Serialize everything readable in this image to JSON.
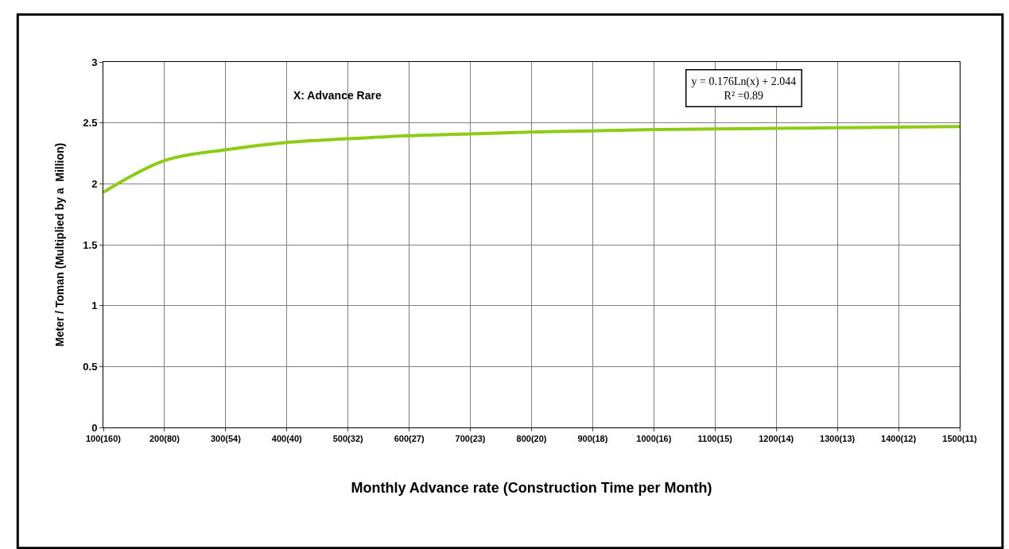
{
  "chart_data": {
    "type": "line",
    "xlabel": "Monthly Advance rate (Construction Time per Month)",
    "ylabel": "Meter / Toman (Multiplied by a  Million)",
    "categories": [
      "100(160)",
      "200(80)",
      "300(54)",
      "400(40)",
      "500(32)",
      "600(27)",
      "700(23)",
      "800(20)",
      "900(18)",
      "1000(16)",
      "1100(15)",
      "1200(14)",
      "1300(13)",
      "1400(12)",
      "1500(11)"
    ],
    "series": [
      {
        "color": "#8ccc14",
        "values": [
          1.93,
          2.19,
          2.28,
          2.34,
          2.37,
          2.395,
          2.41,
          2.425,
          2.435,
          2.445,
          2.45,
          2.455,
          2.46,
          2.465,
          2.47
        ]
      }
    ],
    "ylim": [
      0,
      3
    ],
    "yticks": [
      0,
      0.5,
      1,
      1.5,
      2,
      2.5,
      3
    ],
    "grid": true,
    "marker": "none",
    "line_style": "solid",
    "annotations": [
      "X: Advance Rare",
      "y = 0.176Ln(x) + 2.044",
      "R² =0.89"
    ]
  }
}
